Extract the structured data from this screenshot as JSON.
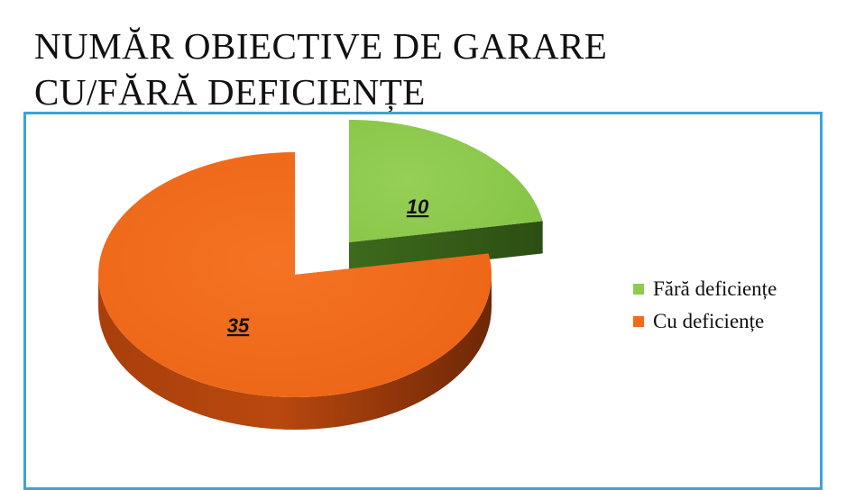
{
  "title_lines": [
    "NUMĂR OBIECTIVE DE GARARE",
    "CU/FĂRĂ DEFICIENȚE"
  ],
  "chart_data": {
    "type": "pie",
    "title": "NUMĂR OBIECTIVE DE GARARE CU/FĂRĂ DEFICIENȚE",
    "categories": [
      "Fără deficiențe",
      "Cu deficiențe"
    ],
    "values": [
      10,
      35
    ],
    "data_labels": [
      "10",
      "35"
    ],
    "colors": {
      "Fără deficiențe": {
        "top": "#8ecb4f",
        "side": "#3f6a1e"
      },
      "Cu deficiențe": {
        "top": "#f26a1b",
        "side": "#a83f0c"
      }
    },
    "exploded": true,
    "three_d": true,
    "legend_position": "right"
  },
  "legend": [
    {
      "label": "Fără deficiențe",
      "color": "#8ecb4f"
    },
    {
      "label": "Cu deficiențe",
      "color": "#f26a1b"
    }
  ]
}
